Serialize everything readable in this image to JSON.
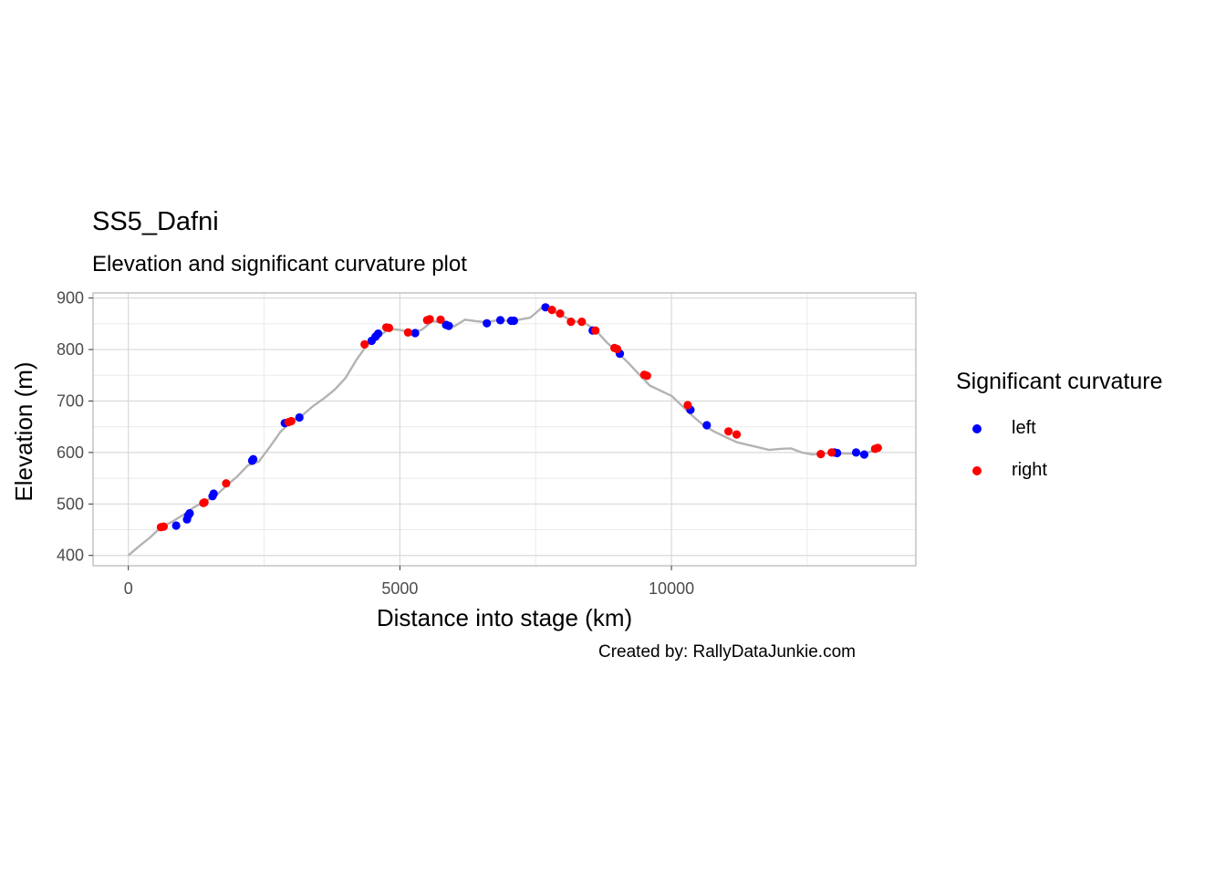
{
  "chart_data": {
    "type": "line+scatter",
    "title": "SS5_Dafni",
    "subtitle": "Elevation and significant curvature plot",
    "xlabel": "Distance into stage (km)",
    "ylabel": "Elevation (m)",
    "caption": "Created by: RallyDataJunkie.com",
    "xlim": [
      -650,
      14500
    ],
    "ylim": [
      380,
      910
    ],
    "x_ticks": [
      0,
      5000,
      10000
    ],
    "y_ticks": [
      400,
      500,
      600,
      700,
      800,
      900
    ],
    "grid": true,
    "legend": {
      "title": "Significant curvature",
      "position": "right",
      "entries": [
        {
          "label": "left",
          "color": "#0000ff"
        },
        {
          "label": "right",
          "color": "#ff0000"
        }
      ]
    },
    "elevation_profile": {
      "color": "#b3b3b3",
      "x": [
        0,
        200,
        400,
        600,
        800,
        1000,
        1200,
        1400,
        1600,
        1800,
        2000,
        2200,
        2400,
        2600,
        2800,
        3000,
        3200,
        3400,
        3600,
        3800,
        4000,
        4200,
        4400,
        4600,
        4800,
        5000,
        5200,
        5400,
        5600,
        5800,
        6000,
        6200,
        6400,
        6600,
        6800,
        7000,
        7200,
        7400,
        7600,
        7700,
        7800,
        8000,
        8200,
        8400,
        8600,
        8800,
        9000,
        9200,
        9400,
        9600,
        9800,
        10000,
        10200,
        10400,
        10600,
        10800,
        11000,
        11200,
        11400,
        11600,
        11800,
        12000,
        12200,
        12400,
        12600,
        12800,
        13000,
        13200,
        13400,
        13600,
        13800
      ],
      "y": [
        400,
        418,
        435,
        455,
        465,
        478,
        493,
        505,
        515,
        535,
        553,
        575,
        582,
        610,
        640,
        660,
        672,
        690,
        705,
        722,
        745,
        780,
        810,
        825,
        840,
        838,
        833,
        838,
        855,
        852,
        845,
        858,
        855,
        853,
        857,
        856,
        858,
        862,
        880,
        882,
        875,
        865,
        855,
        852,
        838,
        815,
        795,
        775,
        752,
        730,
        720,
        710,
        690,
        670,
        652,
        640,
        630,
        620,
        615,
        610,
        605,
        607,
        608,
        600,
        596,
        598,
        600,
        598,
        598,
        600,
        605
      ]
    },
    "series": [
      {
        "name": "left",
        "color": "#0000ff",
        "x": [
          880,
          1080,
          1100,
          1130,
          1550,
          1570,
          2280,
          2300,
          2880,
          3150,
          4480,
          4550,
          4600,
          5280,
          5850,
          5900,
          6600,
          6850,
          7050,
          7100,
          7680,
          8550,
          9050,
          10350,
          10650,
          13000,
          13050,
          13400,
          13550
        ],
        "y": [
          458,
          470,
          477,
          482,
          515,
          520,
          584,
          587,
          657,
          668,
          817,
          825,
          831,
          832,
          848,
          846,
          851,
          857,
          856,
          856,
          882,
          837,
          792,
          683,
          653,
          600,
          599,
          600,
          596
        ]
      },
      {
        "name": "right",
        "color": "#ff0000",
        "x": [
          600,
          650,
          1380,
          1400,
          1800,
          2950,
          3000,
          4350,
          4750,
          4800,
          5150,
          5500,
          5550,
          5750,
          7800,
          7950,
          8150,
          8350,
          8600,
          8950,
          9000,
          9500,
          9550,
          10300,
          11050,
          11200,
          12750,
          12950,
          13750,
          13800
        ],
        "y": [
          455,
          456,
          502,
          503,
          540,
          659,
          661,
          810,
          843,
          842,
          833,
          857,
          859,
          858,
          877,
          870,
          854,
          854,
          837,
          803,
          801,
          751,
          749,
          692,
          641,
          635,
          597,
          600,
          607,
          609
        ]
      }
    ]
  }
}
